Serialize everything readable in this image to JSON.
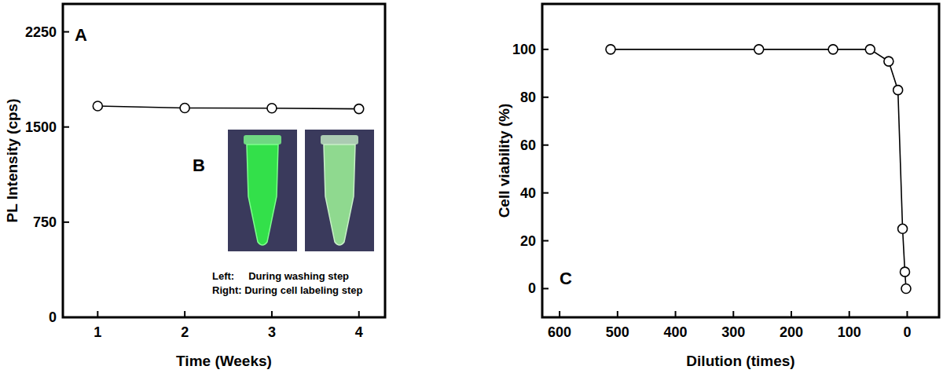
{
  "chart_data": [
    {
      "type": "line",
      "ylabel": "PL Intensity (cps)",
      "xlabel": "Time (Weeks)",
      "x": [
        1,
        2,
        3,
        4
      ],
      "values": [
        1665,
        1650,
        1648,
        1643
      ],
      "color": "#000000",
      "marker": "open-circle",
      "xlim": [
        0.6,
        4.3
      ],
      "xticks": [
        1,
        2,
        3,
        4
      ],
      "ylim": [
        0,
        2470
      ],
      "yticks": [
        0,
        750,
        1500,
        2250
      ],
      "grid": false,
      "annotations": [
        "A",
        "B",
        "Left:     During washing step",
        "Right: During cell labeling step"
      ]
    },
    {
      "type": "line",
      "ylabel": "Cell viability (%)",
      "xlabel": "Dilution  (times)",
      "x": [
        512,
        256,
        128,
        64,
        32,
        16,
        8,
        4,
        2
      ],
      "values": [
        100,
        100,
        100,
        100,
        95,
        83,
        25,
        7,
        0
      ],
      "color": "#000000",
      "marker": "open-circle",
      "xlim": [
        630,
        -55
      ],
      "xticks": [
        600,
        500,
        400,
        300,
        200,
        100,
        0
      ],
      "ylim": [
        -12,
        119
      ],
      "yticks": [
        0,
        20,
        40,
        60,
        80,
        100
      ],
      "grid": false,
      "annotations": [
        "C"
      ]
    }
  ]
}
